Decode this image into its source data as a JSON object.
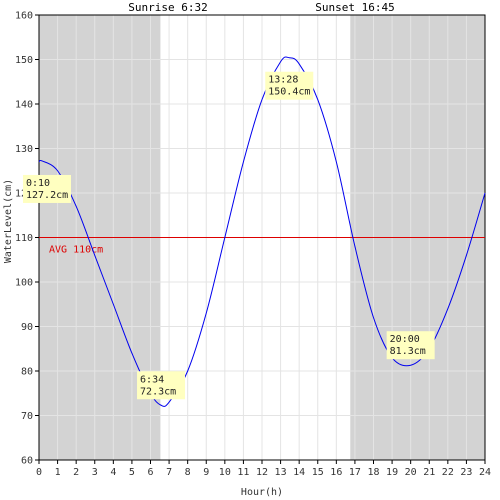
{
  "chart_data": {
    "type": "line",
    "title": "",
    "xlabel": "Hour(h)",
    "ylabel": "WaterLevel(cm)",
    "xlim": [
      0,
      24
    ],
    "ylim": [
      60,
      160
    ],
    "x_ticks": [
      0,
      1,
      2,
      3,
      4,
      5,
      6,
      7,
      8,
      9,
      10,
      11,
      12,
      13,
      14,
      15,
      16,
      17,
      18,
      19,
      20,
      21,
      22,
      23,
      24
    ],
    "y_ticks": [
      60,
      70,
      80,
      90,
      100,
      110,
      120,
      130,
      140,
      150,
      160
    ],
    "grid": true,
    "series": [
      {
        "color": "#0000ee",
        "x": [
          0,
          0.167,
          1,
          2,
          3,
          4,
          5,
          6,
          6.567,
          7,
          8,
          9,
          10,
          11,
          12,
          13,
          13.467,
          14,
          15,
          16,
          17,
          18,
          19,
          20,
          21,
          22,
          23,
          24
        ],
        "y": [
          127.0,
          127.2,
          125.0,
          117.0,
          106.0,
          95.0,
          84.0,
          75.0,
          72.3,
          73.0,
          80.0,
          93.0,
          110.0,
          127.0,
          141.0,
          149.5,
          150.4,
          149.0,
          141.0,
          127.0,
          108.0,
          92.0,
          83.0,
          81.3,
          85.0,
          94.0,
          106.0,
          120.0
        ]
      }
    ],
    "average": {
      "value": 110,
      "label": "AVG 110cm",
      "color": "#dd0000"
    },
    "sunrise": {
      "label": "Sunrise 6:32",
      "hour": 6.533
    },
    "sunset": {
      "label": "Sunset 16:45",
      "hour": 16.75
    },
    "night_color": "#d3d3d3",
    "sun_label_color": "#cc6600",
    "annotations": [
      {
        "x": 0.167,
        "y": 127.2,
        "time": "0:10",
        "value": "127.2cm"
      },
      {
        "x": 6.567,
        "y": 72.3,
        "time": "6:34",
        "value": "72.3cm"
      },
      {
        "x": 13.467,
        "y": 150.4,
        "time": "13:28",
        "value": "150.4cm"
      },
      {
        "x": 20.0,
        "y": 81.3,
        "time": "20:00",
        "value": "81.3cm"
      }
    ]
  }
}
